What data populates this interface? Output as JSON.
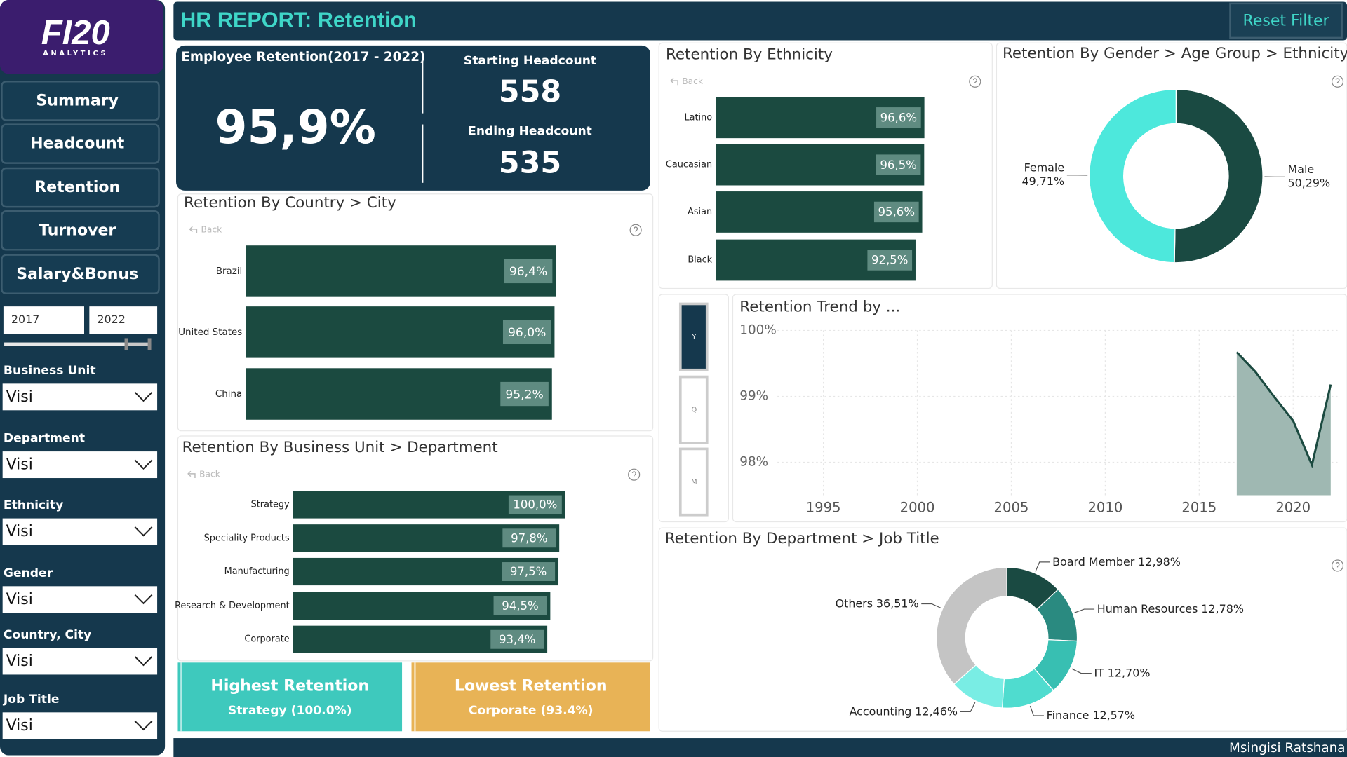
{
  "header": {
    "title": "HR REPORT: Retention",
    "reset": "Reset Filter"
  },
  "logo": {
    "main": "FI20",
    "sub": "ANALYTICS"
  },
  "nav": [
    "Summary",
    "Headcount",
    "Retention",
    "Turnover",
    "Salary&Bonus"
  ],
  "year_range": [
    "2017",
    "2022"
  ],
  "filters": [
    {
      "label": "Business Unit",
      "value": "Visi"
    },
    {
      "label": "Department",
      "value": "Visi"
    },
    {
      "label": "Ethnicity",
      "value": "Visi"
    },
    {
      "label": "Gender",
      "value": "Visi"
    },
    {
      "label": "Country, City",
      "value": "Visi"
    },
    {
      "label": "Job Title",
      "value": "Visi"
    }
  ],
  "kpi": {
    "title": "Employee Retention(2017 - 2022)",
    "value": "95,9%",
    "start_label": "Starting Headcount",
    "start": "558",
    "end_label": "Ending Headcount",
    "end": "535"
  },
  "cards": [
    {
      "title": "Highest Retention",
      "value": "Strategy (100.0%)"
    },
    {
      "title": "Lowest Retention",
      "value": "Corporate (93.4%)"
    }
  ],
  "back": "Back",
  "period_buttons": [
    "Y",
    "Q",
    "M"
  ],
  "footer": "Msingisi Ratshana",
  "chart_data": [
    {
      "type": "bar",
      "orientation": "horizontal",
      "title": "Retention By Country > City",
      "categories": [
        "Brazil",
        "United States",
        "China"
      ],
      "values": [
        96.4,
        96.0,
        95.2
      ],
      "value_labels": [
        "96,4%",
        "96,0%",
        "95,2%"
      ],
      "color": "#1b4a40"
    },
    {
      "type": "bar",
      "orientation": "horizontal",
      "title": "Retention By Business Unit > Department",
      "categories": [
        "Strategy",
        "Speciality Products",
        "Manufacturing",
        "Research & Development",
        "Corporate"
      ],
      "values": [
        100.0,
        97.8,
        97.5,
        94.5,
        93.4
      ],
      "value_labels": [
        "100,0%",
        "97,8%",
        "97,5%",
        "94,5%",
        "93,4%"
      ],
      "color": "#1b4a40"
    },
    {
      "type": "bar",
      "orientation": "horizontal",
      "title": "Retention By Ethnicity",
      "categories": [
        "Latino",
        "Caucasian",
        "Asian",
        "Black"
      ],
      "values": [
        96.6,
        96.5,
        95.6,
        92.5
      ],
      "value_labels": [
        "96,6%",
        "96,5%",
        "95,6%",
        "92,5%"
      ],
      "color": "#1b4a40"
    },
    {
      "type": "donut",
      "title": "Retention By Gender > Age Group > Ethnicity",
      "categories": [
        "Male",
        "Female"
      ],
      "values": [
        50.29,
        49.71
      ],
      "value_labels": [
        "50,29%",
        "49,71%"
      ],
      "colors": [
        "#1a4a42",
        "#4de8dc"
      ]
    },
    {
      "type": "area",
      "title": "Retention Trend by ...",
      "x": [
        2017,
        2018,
        2019,
        2020,
        2021,
        2022
      ],
      "values": [
        99.67,
        99.37,
        98.99,
        98.63,
        97.96,
        99.18
      ],
      "xlim": [
        1990.5,
        2022.5
      ],
      "ylim": [
        97.5,
        100
      ],
      "xticks": [
        1995,
        2000,
        2005,
        2010,
        2015,
        2020
      ],
      "yticks": [
        {
          "value": 100,
          "label": "100%"
        },
        {
          "value": 99,
          "label": "99%"
        },
        {
          "value": 98,
          "label": "98%"
        }
      ],
      "color": "#1b4a40",
      "fill": "#9fb8b2",
      "grid": true
    },
    {
      "type": "donut",
      "title": "Retention By Department > Job Title",
      "categories": [
        "Board Member",
        "Human Resources",
        "IT",
        "Finance",
        "Accounting",
        "Others"
      ],
      "values": [
        12.98,
        12.78,
        12.7,
        12.57,
        12.46,
        36.51
      ],
      "value_labels": [
        "12,98%",
        "12,78%",
        "12,70%",
        "12,57%",
        "12,46%",
        "36,51%"
      ],
      "colors": [
        "#1a4a42",
        "#2a8a80",
        "#38bfb2",
        "#4fdccf",
        "#79ede4",
        "#c4c4c4"
      ]
    }
  ]
}
